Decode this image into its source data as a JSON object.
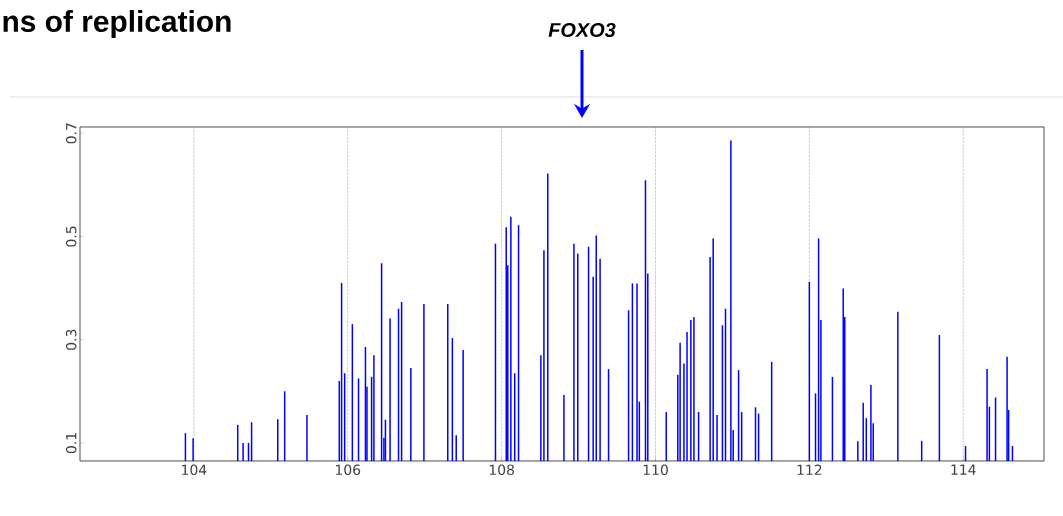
{
  "chart_data": {
    "type": "bar",
    "title": "ns of replication",
    "annotations": [
      "FOXO3"
    ],
    "x": [
      103.89,
      103.99,
      104.57,
      104.64,
      104.71,
      104.75,
      105.09,
      105.18,
      105.47,
      105.89,
      105.92,
      105.96,
      106.06,
      106.14,
      106.23,
      106.25,
      106.31,
      106.34,
      106.44,
      106.47,
      106.49,
      106.55,
      106.66,
      106.7,
      106.82,
      106.99,
      107.3,
      107.36,
      107.41,
      107.5,
      107.92,
      108.06,
      108.08,
      108.12,
      108.17,
      108.22,
      108.51,
      108.55,
      108.6,
      108.81,
      108.94,
      108.99,
      109.13,
      109.19,
      109.23,
      109.28,
      109.39,
      109.65,
      109.7,
      109.76,
      109.79,
      109.87,
      109.9,
      110.14,
      110.29,
      110.32,
      110.37,
      110.41,
      110.46,
      110.5,
      110.56,
      110.71,
      110.75,
      110.8,
      110.87,
      110.91,
      110.98,
      111.01,
      111.08,
      111.12,
      111.3,
      111.34,
      111.51,
      112.0,
      112.08,
      112.12,
      112.15,
      112.3,
      112.44,
      112.46,
      112.63,
      112.7,
      112.74,
      112.8,
      112.83,
      113.15,
      113.46,
      113.69,
      114.03,
      114.31,
      114.34,
      114.42,
      114.57,
      114.59,
      114.64
    ],
    "values": [
      0.119,
      0.109,
      0.135,
      0.1,
      0.1,
      0.14,
      0.146,
      0.2,
      0.154,
      0.22,
      0.41,
      0.235,
      0.33,
      0.225,
      0.286,
      0.209,
      0.228,
      0.27,
      0.448,
      0.11,
      0.145,
      0.341,
      0.36,
      0.373,
      0.245,
      0.369,
      0.369,
      0.303,
      0.115,
      0.28,
      0.486,
      0.518,
      0.444,
      0.538,
      0.235,
      0.522,
      0.27,
      0.473,
      0.622,
      0.193,
      0.486,
      0.467,
      0.48,
      0.422,
      0.502,
      0.457,
      0.243,
      0.357,
      0.409,
      0.409,
      0.18,
      0.609,
      0.428,
      0.16,
      0.232,
      0.294,
      0.254,
      0.315,
      0.338,
      0.344,
      0.16,
      0.46,
      0.496,
      0.154,
      0.328,
      0.36,
      0.686,
      0.125,
      0.241,
      0.16,
      0.169,
      0.157,
      0.257,
      0.412,
      0.196,
      0.496,
      0.338,
      0.228,
      0.399,
      0.344,
      0.103,
      0.178,
      0.148,
      0.212,
      0.138,
      0.354,
      0.104,
      0.309,
      0.094,
      0.243,
      0.17,
      0.188,
      0.267,
      0.164,
      0.094
    ],
    "color": "#0000ff",
    "xlim": [
      102.52,
      115.05
    ],
    "ylim": [
      0.065,
      0.712
    ],
    "xticks": [
      104,
      106,
      108,
      110,
      112,
      114
    ],
    "yticks": [
      0.1,
      0.3,
      0.5,
      0.7
    ],
    "grid": "x"
  }
}
